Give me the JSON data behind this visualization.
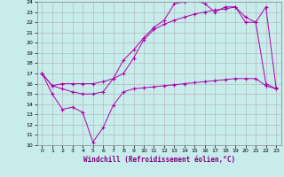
{
  "xlabel": "Windchill (Refroidissement éolien,°C)",
  "bg_color": "#c8ecec",
  "grid_color": "#b0b0b0",
  "line_color": "#aa00aa",
  "xlim": [
    -0.5,
    23.5
  ],
  "ylim": [
    10,
    24
  ],
  "xticks": [
    0,
    1,
    2,
    3,
    4,
    5,
    6,
    7,
    8,
    9,
    10,
    11,
    12,
    13,
    14,
    15,
    16,
    17,
    18,
    19,
    20,
    21,
    22,
    23
  ],
  "yticks": [
    10,
    11,
    12,
    13,
    14,
    15,
    16,
    17,
    18,
    19,
    20,
    21,
    22,
    23,
    24
  ],
  "line1_x": [
    0,
    1,
    2,
    3,
    4,
    5,
    6,
    7,
    8,
    9,
    10,
    11,
    12,
    13,
    14,
    15,
    16,
    17,
    18,
    19,
    20,
    21,
    22,
    23
  ],
  "line1_y": [
    17.0,
    15.8,
    16.0,
    16.0,
    16.0,
    16.0,
    16.2,
    16.5,
    17.0,
    18.5,
    20.3,
    21.3,
    21.8,
    22.2,
    22.5,
    22.8,
    23.0,
    23.2,
    23.3,
    23.5,
    22.5,
    22.0,
    23.5,
    15.6
  ],
  "line2_x": [
    0,
    1,
    2,
    3,
    4,
    5,
    6,
    7,
    8,
    9,
    10,
    11,
    12,
    13,
    14,
    15,
    16,
    17,
    18,
    19,
    20,
    21,
    22,
    23
  ],
  "line2_y": [
    17.0,
    15.8,
    15.5,
    15.2,
    15.0,
    15.0,
    15.2,
    16.5,
    18.3,
    19.3,
    20.5,
    21.5,
    22.2,
    23.8,
    24.0,
    24.2,
    23.8,
    23.0,
    23.5,
    23.5,
    22.0,
    22.0,
    16.0,
    15.5
  ],
  "line3_x": [
    0,
    1,
    2,
    3,
    4,
    5,
    6,
    7,
    8,
    9,
    10,
    11,
    12,
    13,
    14,
    15,
    16,
    17,
    18,
    19,
    20,
    21,
    22,
    23
  ],
  "line3_y": [
    17.0,
    15.0,
    13.5,
    13.7,
    13.2,
    10.3,
    11.7,
    13.9,
    15.2,
    15.5,
    15.6,
    15.7,
    15.8,
    15.9,
    16.0,
    16.1,
    16.2,
    16.3,
    16.4,
    16.5,
    16.5,
    16.5,
    15.8,
    15.5
  ]
}
